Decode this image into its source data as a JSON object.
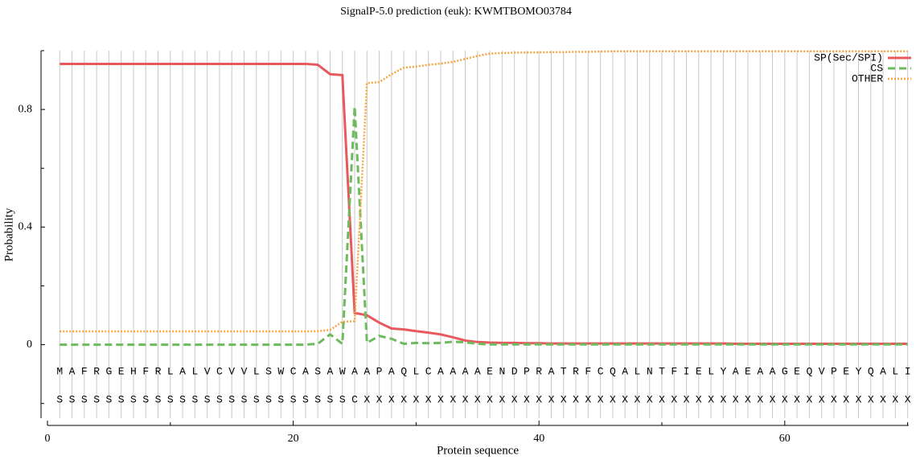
{
  "chart_data": {
    "type": "line",
    "title": "SignalP-5.0 prediction (euk):  KWMTBOMO03784",
    "xlabel": "Protein sequence",
    "ylabel": "Probability",
    "xlim": [
      0,
      70
    ],
    "ylim": [
      -0.25,
      1.0
    ],
    "xticks": [
      0,
      20,
      40,
      60
    ],
    "xminorticks": [
      10,
      30,
      50,
      70
    ],
    "yticks": [
      0,
      0.4,
      0.8
    ],
    "yminorticks": [
      -0.2,
      0.2,
      0.6,
      1.0
    ],
    "grid": true,
    "legend": "upper right",
    "x": [
      1,
      2,
      3,
      4,
      5,
      6,
      7,
      8,
      9,
      10,
      11,
      12,
      13,
      14,
      15,
      16,
      17,
      18,
      19,
      20,
      21,
      22,
      23,
      24,
      25,
      26,
      27,
      28,
      29,
      30,
      31,
      32,
      33,
      34,
      35,
      36,
      37,
      38,
      39,
      40,
      41,
      42,
      43,
      44,
      45,
      46,
      47,
      48,
      49,
      50,
      51,
      52,
      53,
      54,
      55,
      56,
      57,
      58,
      59,
      60,
      61,
      62,
      63,
      64,
      65,
      66,
      67,
      68,
      69,
      70
    ],
    "sequence": [
      "M",
      "A",
      "F",
      "R",
      "G",
      "E",
      "H",
      "F",
      "R",
      "L",
      "A",
      "L",
      "V",
      "C",
      "V",
      "V",
      "L",
      "S",
      "W",
      "C",
      "A",
      "S",
      "A",
      "W",
      "A",
      "A",
      "P",
      "A",
      "Q",
      "L",
      "C",
      "A",
      "A",
      "A",
      "A",
      "E",
      "N",
      "D",
      "P",
      "R",
      "A",
      "T",
      "R",
      "F",
      "C",
      "Q",
      "A",
      "L",
      "N",
      "T",
      "F",
      "I",
      "E",
      "L",
      "Y",
      "A",
      "E",
      "A",
      "A",
      "G",
      "E",
      "Q",
      "V",
      "P",
      "E",
      "Y",
      "Q",
      "A",
      "L",
      "I"
    ],
    "labels": [
      "S",
      "S",
      "S",
      "S",
      "S",
      "S",
      "S",
      "S",
      "S",
      "S",
      "S",
      "S",
      "S",
      "S",
      "S",
      "S",
      "S",
      "S",
      "S",
      "S",
      "S",
      "S",
      "S",
      "S",
      "C",
      "X",
      "X",
      "X",
      "X",
      "X",
      "X",
      "X",
      "X",
      "X",
      "X",
      "X",
      "X",
      "X",
      "X",
      "X",
      "X",
      "X",
      "X",
      "X",
      "X",
      "X",
      "X",
      "X",
      "X",
      "X",
      "X",
      "X",
      "X",
      "X",
      "X",
      "X",
      "X",
      "X",
      "X",
      "X",
      "X",
      "X",
      "X",
      "X",
      "X",
      "X",
      "X",
      "X",
      "X",
      "X"
    ],
    "series": [
      {
        "name": "SP(Sec/SPI)",
        "color": "#e8595e",
        "style": "solid",
        "values": [
          0.955,
          0.955,
          0.955,
          0.955,
          0.955,
          0.955,
          0.955,
          0.955,
          0.955,
          0.955,
          0.955,
          0.955,
          0.955,
          0.955,
          0.955,
          0.955,
          0.955,
          0.955,
          0.955,
          0.955,
          0.955,
          0.952,
          0.92,
          0.917,
          0.108,
          0.1,
          0.075,
          0.055,
          0.052,
          0.046,
          0.041,
          0.035,
          0.025,
          0.014,
          0.009,
          0.007,
          0.006,
          0.006,
          0.005,
          0.005,
          0.004,
          0.004,
          0.004,
          0.004,
          0.004,
          0.004,
          0.004,
          0.004,
          0.004,
          0.004,
          0.004,
          0.004,
          0.004,
          0.004,
          0.004,
          0.003,
          0.003,
          0.003,
          0.003,
          0.003,
          0.003,
          0.003,
          0.003,
          0.003,
          0.003,
          0.003,
          0.003,
          0.003,
          0.003,
          0.003
        ]
      },
      {
        "name": "CS",
        "color": "#6dbb5e",
        "style": "dashed",
        "values": [
          0,
          0,
          0,
          0,
          0,
          0,
          0,
          0,
          0,
          0,
          0,
          0,
          0,
          0,
          0,
          0,
          0,
          0,
          0,
          0,
          0,
          0.003,
          0.035,
          0.003,
          0.81,
          0.006,
          0.03,
          0.02,
          0.003,
          0.006,
          0.005,
          0.006,
          0.01,
          0.008,
          0.003,
          0.001,
          0.001,
          0.001,
          0.001,
          0.001,
          0.001,
          0.001,
          0.001,
          0.001,
          0.001,
          0.001,
          0.001,
          0.001,
          0.001,
          0.001,
          0.001,
          0.001,
          0.001,
          0.001,
          0.001,
          0.001,
          0.001,
          0.001,
          0.001,
          0.001,
          0.001,
          0.001,
          0.001,
          0.001,
          0.001,
          0.001,
          0.001,
          0.001,
          0.001,
          0.001
        ]
      },
      {
        "name": "OTHER",
        "color": "#f5a442",
        "style": "dotted",
        "values": [
          0.045,
          0.045,
          0.045,
          0.045,
          0.045,
          0.045,
          0.045,
          0.045,
          0.045,
          0.045,
          0.045,
          0.045,
          0.045,
          0.045,
          0.045,
          0.045,
          0.045,
          0.045,
          0.045,
          0.045,
          0.045,
          0.046,
          0.05,
          0.078,
          0.08,
          0.89,
          0.893,
          0.92,
          0.942,
          0.946,
          0.952,
          0.956,
          0.962,
          0.972,
          0.982,
          0.99,
          0.992,
          0.993,
          0.994,
          0.994,
          0.995,
          0.995,
          0.996,
          0.996,
          0.997,
          0.998,
          0.998,
          0.998,
          0.998,
          0.998,
          0.998,
          0.998,
          0.998,
          0.998,
          0.998,
          0.998,
          0.998,
          0.998,
          0.998,
          0.998,
          0.998,
          0.998,
          0.998,
          0.998,
          0.998,
          0.998,
          0.998,
          0.998,
          0.998,
          0.998
        ]
      }
    ]
  }
}
